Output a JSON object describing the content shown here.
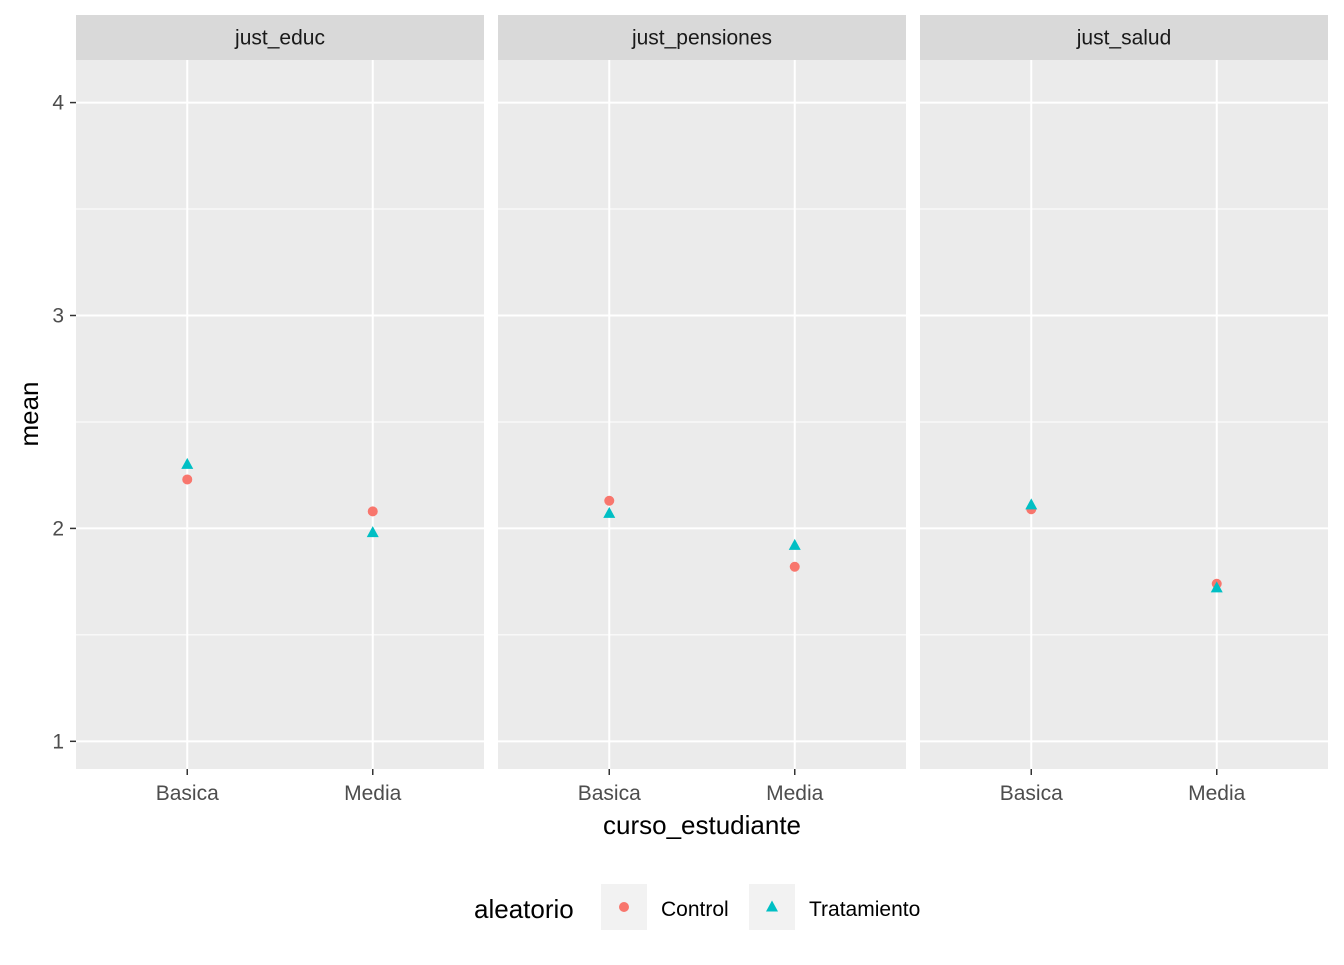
{
  "chart_data": {
    "type": "scatter",
    "facets": [
      "just_educ",
      "just_pensiones",
      "just_salud"
    ],
    "categories": [
      "Basica",
      "Media"
    ],
    "xlabel": "curso_estudiante",
    "ylabel": "mean",
    "ylim": [
      0.87,
      4.2
    ],
    "yticks": [
      "1",
      "2",
      "3",
      "4"
    ],
    "grid": true,
    "legend": {
      "title": "aleatorio",
      "position": "bottom",
      "entries": [
        "Control",
        "Tratamiento"
      ]
    },
    "series": [
      {
        "name": "Control",
        "shape": "circle",
        "color": "#F8766D",
        "values": {
          "just_educ": [
            2.23,
            2.08
          ],
          "just_pensiones": [
            2.13,
            1.82
          ],
          "just_salud": [
            2.09,
            1.74
          ]
        }
      },
      {
        "name": "Tratamiento",
        "shape": "triangle",
        "color": "#00BFC4",
        "values": {
          "just_educ": [
            2.3,
            1.98
          ],
          "just_pensiones": [
            2.07,
            1.92
          ],
          "just_salud": [
            2.11,
            1.72
          ]
        }
      }
    ],
    "colors": {
      "panel_background": "#EBEBEB",
      "strip_background": "#D9D9D9",
      "grid": "#FFFFFF",
      "legend_key_background": "#F2F2F2"
    }
  }
}
